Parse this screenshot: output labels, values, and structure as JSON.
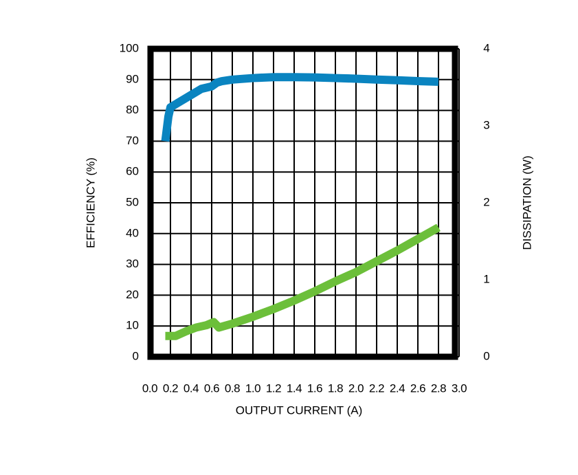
{
  "chart_data": {
    "type": "line",
    "xlabel": "OUTPUT CURRENT (A)",
    "ylabel": "EFFICIENCY (%)",
    "y2label": "DISSIPATION (W)",
    "xlim": [
      0,
      3
    ],
    "xticks": [
      {
        "value": 0,
        "label": "0.0"
      },
      {
        "value": 0.2,
        "label": "0.2"
      },
      {
        "value": 0.4,
        "label": "0.4"
      },
      {
        "value": 0.6,
        "label": "0.6"
      },
      {
        "value": 0.8,
        "label": "0.8"
      },
      {
        "value": 1,
        "label": "1.0"
      },
      {
        "value": 1.2,
        "label": "1.2"
      },
      {
        "value": 1.4,
        "label": "1.4"
      },
      {
        "value": 1.6,
        "label": "1.6"
      },
      {
        "value": 1.8,
        "label": "1.8"
      },
      {
        "value": 2,
        "label": "2.0"
      },
      {
        "value": 2.2,
        "label": "2.2"
      },
      {
        "value": 2.4,
        "label": "2.4"
      },
      {
        "value": 2.6,
        "label": "2.6"
      },
      {
        "value": 2.8,
        "label": "2.8"
      },
      {
        "value": 3,
        "label": "3.0"
      }
    ],
    "ylim": [
      0,
      100
    ],
    "yticks": [
      0,
      10,
      20,
      30,
      40,
      50,
      60,
      70,
      80,
      90,
      100
    ],
    "y2lim": [
      0,
      4
    ],
    "y2ticks": [
      0,
      1,
      2,
      3,
      4
    ],
    "grid": true,
    "series": [
      {
        "color": "#0a84c0",
        "axis": "y",
        "x": [
          0.15,
          0.18,
          0.2,
          0.3,
          0.4,
          0.5,
          0.6,
          0.65,
          0.7,
          0.8,
          1.0,
          1.2,
          1.4,
          1.6,
          1.8,
          2.0,
          2.2,
          2.4,
          2.6,
          2.8
        ],
        "values": [
          70,
          78,
          81,
          83,
          85,
          87,
          87.8,
          89,
          89.5,
          90,
          90.5,
          90.8,
          90.8,
          90.7,
          90.5,
          90.3,
          90,
          89.8,
          89.5,
          89.3
        ]
      },
      {
        "color": "#6cbf3a",
        "axis": "y2",
        "x": [
          0.15,
          0.25,
          0.35,
          0.45,
          0.55,
          0.62,
          0.67,
          0.8,
          1.0,
          1.2,
          1.4,
          1.6,
          1.8,
          2.0,
          2.2,
          2.4,
          2.6,
          2.8
        ],
        "values": [
          0.27,
          0.27,
          0.33,
          0.38,
          0.41,
          0.45,
          0.38,
          0.43,
          0.52,
          0.62,
          0.73,
          0.85,
          0.98,
          1.1,
          1.24,
          1.38,
          1.53,
          1.68
        ]
      }
    ]
  }
}
